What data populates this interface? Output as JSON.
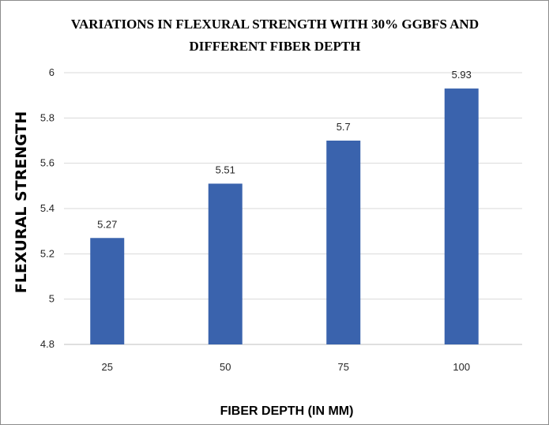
{
  "chart_data": {
    "type": "bar",
    "title_lines": [
      "VARIATIONS  IN  FLEXURAL STRENGTH WITH 30% GGBFS AND",
      "DIFFERENT FIBER DEPTH"
    ],
    "xlabel": "FIBER DEPTH (IN MM)",
    "ylabel": "FLEXURAL STRENGTH",
    "categories": [
      "25",
      "50",
      "75",
      "100"
    ],
    "values": [
      5.27,
      5.51,
      5.7,
      5.93
    ],
    "data_labels": [
      "5.27",
      "5.51",
      "5.7",
      "5.93"
    ],
    "ylim": [
      4.8,
      6
    ],
    "yticks": [
      "4.8",
      "5",
      "5.2",
      "5.4",
      "5.6",
      "5.8",
      "6"
    ],
    "grid": true,
    "legend": "none",
    "bar_color": "#3a63ad",
    "grid_color": "#d9d9d9"
  }
}
